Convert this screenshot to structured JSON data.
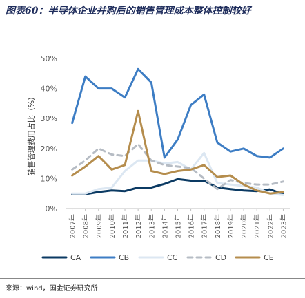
{
  "title": "图表60：半导体企业并购后的销售管理成本整体控制较好",
  "source": "来源：wind，国金证券研究所",
  "chart_data": {
    "type": "line",
    "title": "",
    "xlabel": "",
    "ylabel": "销售管理费用占比（%）",
    "ylim": [
      0,
      50
    ],
    "yticks": [
      "0%",
      "10%",
      "20%",
      "30%",
      "40%",
      "50%"
    ],
    "legend_position": "bottom",
    "categories": [
      "2007年",
      "2008年",
      "2009年",
      "2010年",
      "2011年",
      "2012年",
      "2013年",
      "2014年",
      "2015年",
      "2016年",
      "2017年",
      "2018年",
      "2019年",
      "2020年",
      "2021年",
      "2022年",
      "2023年"
    ],
    "series": [
      {
        "name": "CA",
        "color": "#0b3a63",
        "dash": "solid",
        "values": [
          4.8,
          4.8,
          5.5,
          6.0,
          5.8,
          7.0,
          7.0,
          8.2,
          9.8,
          9.3,
          9.3,
          7.0,
          6.5,
          6.0,
          5.8,
          6.4,
          4.8
        ]
      },
      {
        "name": "CB",
        "color": "#3d7dc4",
        "dash": "solid",
        "values": [
          28.5,
          44.0,
          40.0,
          40.0,
          37.0,
          46.5,
          42.0,
          17.0,
          23.0,
          34.5,
          38.0,
          22.0,
          19.0,
          20.0,
          17.5,
          17.0,
          20.0
        ]
      },
      {
        "name": "CC",
        "color": "#dce7f2",
        "dash": "solid",
        "values": [
          5.0,
          5.0,
          6.5,
          7.0,
          12.5,
          16.0,
          16.0,
          15.0,
          15.5,
          13.0,
          18.5,
          8.5,
          8.0,
          7.5,
          7.0,
          5.0,
          4.5
        ]
      },
      {
        "name": "CD",
        "color": "#b6bcc4",
        "dash": "dashed",
        "values": [
          13.0,
          16.0,
          20.0,
          18.0,
          17.5,
          21.5,
          16.0,
          14.5,
          14.0,
          13.5,
          10.0,
          6.5,
          9.5,
          8.5,
          8.0,
          8.0,
          9.0
        ]
      },
      {
        "name": "CE",
        "color": "#b58d4d",
        "dash": "solid",
        "values": [
          11.0,
          14.0,
          17.5,
          13.0,
          14.5,
          32.5,
          12.5,
          11.5,
          12.5,
          13.0,
          14.5,
          10.5,
          11.0,
          8.0,
          6.0,
          5.0,
          5.5
        ]
      }
    ]
  }
}
